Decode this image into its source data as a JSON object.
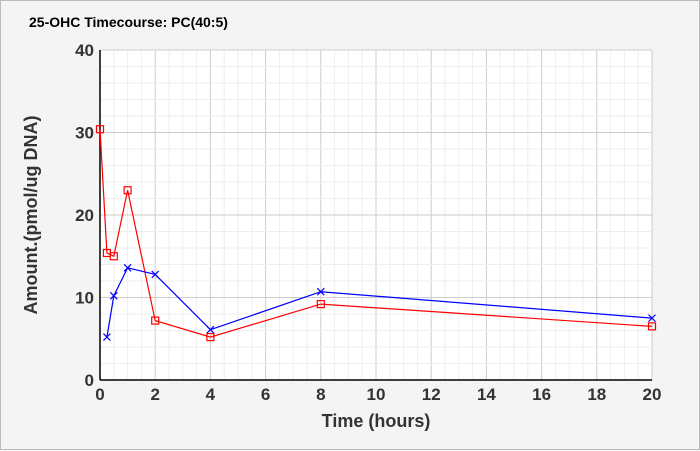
{
  "chart_data": {
    "type": "line",
    "title": "25-OHC Timecourse: PC(40:5)",
    "xlabel": "Time (hours)",
    "ylabel": "Amount.(pmol/ug DNA)",
    "xlim": [
      0,
      20
    ],
    "ylim": [
      0,
      40
    ],
    "xticks": [
      0,
      2,
      4,
      6,
      8,
      10,
      12,
      14,
      16,
      18,
      20
    ],
    "yticks": [
      0,
      10,
      20,
      30,
      40
    ],
    "grid": true,
    "series": [
      {
        "name": "red",
        "color": "#ff0000",
        "marker": "square",
        "x": [
          0,
          0.25,
          0.5,
          1,
          2,
          4,
          8,
          20
        ],
        "y": [
          30.4,
          15.4,
          15.0,
          23.0,
          7.2,
          5.2,
          9.2,
          6.5
        ]
      },
      {
        "name": "blue",
        "color": "#0000ff",
        "marker": "x",
        "x": [
          0.25,
          0.5,
          1,
          2,
          4,
          8,
          20
        ],
        "y": [
          5.2,
          10.2,
          13.6,
          12.8,
          6.1,
          10.7,
          7.5
        ]
      }
    ]
  }
}
